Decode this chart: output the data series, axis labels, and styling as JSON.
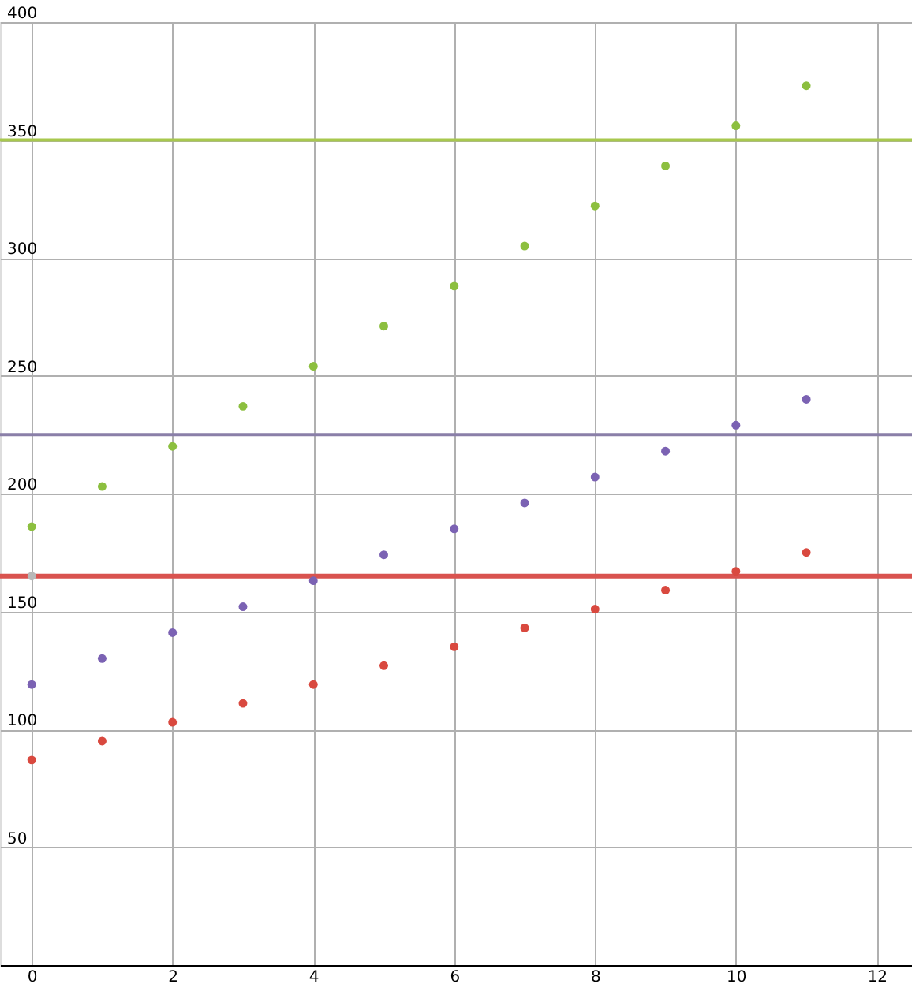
{
  "chart_data": {
    "type": "scatter",
    "x": [
      0,
      1,
      2,
      3,
      4,
      5,
      6,
      7,
      8,
      9,
      10,
      11
    ],
    "series": [
      {
        "color": "#8cbf3f",
        "values": [
          186,
          203,
          220,
          237,
          254,
          271,
          288,
          305,
          322,
          339,
          356,
          373
        ]
      },
      {
        "color": "#7b62b3",
        "values": [
          119,
          130,
          141,
          152,
          163,
          174,
          185,
          196,
          207,
          218,
          229,
          240
        ]
      },
      {
        "color": "#d9493f",
        "values": [
          87,
          95,
          103,
          111,
          119,
          127,
          135,
          143,
          151,
          159,
          167,
          175
        ]
      },
      {
        "color": "#b8b8b8",
        "x": [
          0
        ],
        "values": [
          165
        ]
      }
    ],
    "ref_lines": [
      {
        "axis": "y",
        "value": 350,
        "color": "#a8c84e"
      },
      {
        "axis": "y",
        "value": 225,
        "color": "#8a7fa8"
      },
      {
        "axis": "y",
        "value": 165,
        "color": "#d9534f"
      }
    ],
    "xlim": [
      -0.45,
      12.5
    ],
    "ylim": [
      0,
      400
    ],
    "xticks": [
      0,
      2,
      4,
      6,
      8,
      10,
      12
    ],
    "yticks": [
      50,
      100,
      150,
      200,
      250,
      300,
      350,
      400
    ],
    "grid": true,
    "marker": "circle"
  }
}
